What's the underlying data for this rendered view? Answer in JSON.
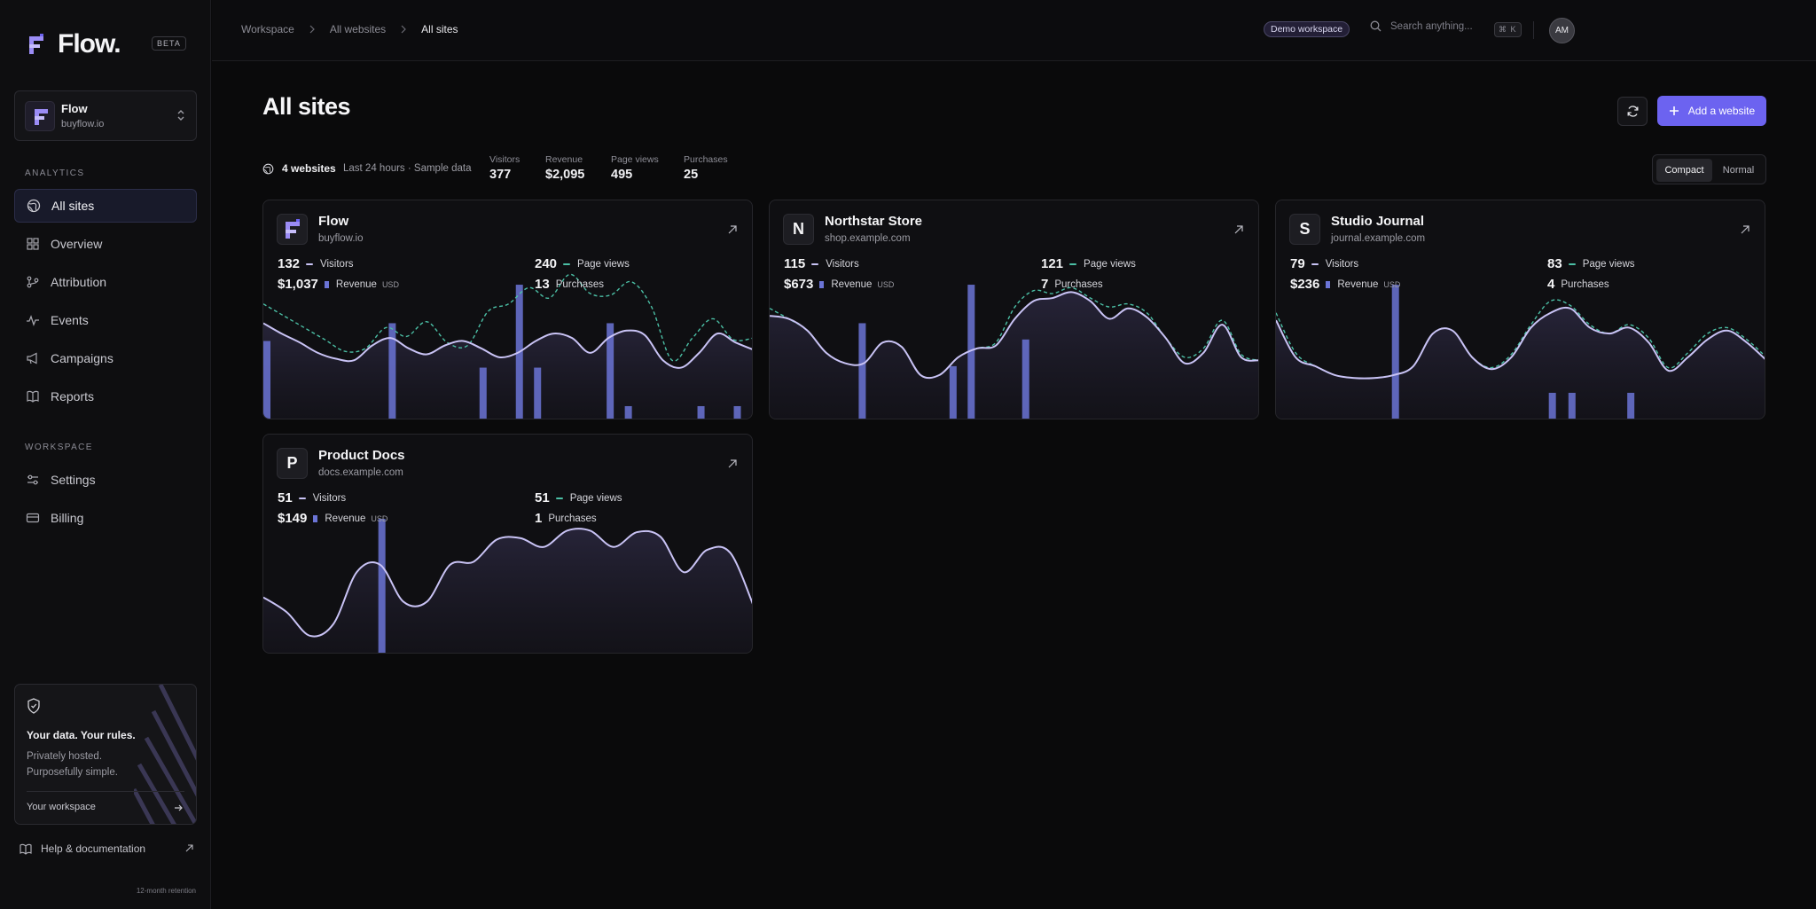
{
  "brand": {
    "name": "Flow.",
    "badge": "BETA"
  },
  "switcher": {
    "name": "Flow",
    "domain": "buyflow.io"
  },
  "sidebar": {
    "analytics_label": "ANALYTICS",
    "workspace_label": "WORKSPACE",
    "items": [
      {
        "label": "All sites",
        "icon": "globe-icon"
      },
      {
        "label": "Overview",
        "icon": "grid-icon"
      },
      {
        "label": "Attribution",
        "icon": "branch-icon"
      },
      {
        "label": "Events",
        "icon": "activity-icon"
      },
      {
        "label": "Campaigns",
        "icon": "megaphone-icon"
      },
      {
        "label": "Reports",
        "icon": "book-icon"
      },
      {
        "label": "Settings",
        "icon": "sliders-icon"
      },
      {
        "label": "Billing",
        "icon": "credit-card-icon"
      }
    ]
  },
  "promo": {
    "title": "Your data. Your rules.",
    "line1": "Privately hosted.",
    "line2": "Purposefully simple.",
    "link": "Your workspace"
  },
  "help": {
    "label": "Help & documentation"
  },
  "retention": "12-month retention",
  "topbar": {
    "breadcrumbs": [
      "Workspace",
      "All websites",
      "All sites"
    ],
    "workspace_badge": "Demo workspace",
    "search_placeholder": "Search anything...",
    "shortcut": "⌘ K",
    "avatar": "AM"
  },
  "page": {
    "title": "All sites",
    "add_button": "Add a website"
  },
  "summary": {
    "count": "4 websites",
    "range": "Last 24 hours · Sample data",
    "stats": [
      {
        "label": "Visitors",
        "value": "377"
      },
      {
        "label": "Revenue",
        "value": "$2,095"
      },
      {
        "label": "Page views",
        "value": "495"
      },
      {
        "label": "Purchases",
        "value": "25"
      }
    ]
  },
  "view_toggle": {
    "options": [
      "Compact",
      "Normal"
    ],
    "selected": "Compact"
  },
  "colors": {
    "accent": "#6c63f0",
    "visitors_line": "#c9c3f5",
    "pageviews_line": "#4bbfa5",
    "revenue_bar": "#6b74d6"
  },
  "labels": {
    "visitors": "Visitors",
    "revenue": "Revenue",
    "currency": "USD",
    "page_views": "Page views",
    "purchases": "Purchases"
  },
  "sites": [
    {
      "initial": "F",
      "name": "Flow",
      "domain": "buyflow.io",
      "visitors": "132",
      "revenue": "$1,037",
      "page_views": "240",
      "purchases": "13"
    },
    {
      "initial": "N",
      "name": "Northstar Store",
      "domain": "shop.example.com",
      "visitors": "115",
      "revenue": "$673",
      "page_views": "121",
      "purchases": "7"
    },
    {
      "initial": "S",
      "name": "Studio Journal",
      "domain": "journal.example.com",
      "visitors": "79",
      "revenue": "$236",
      "page_views": "83",
      "purchases": "4"
    },
    {
      "initial": "P",
      "name": "Product Docs",
      "domain": "docs.example.com",
      "visitors": "51",
      "revenue": "$149",
      "page_views": "51",
      "purchases": "1"
    }
  ],
  "chart_data": [
    {
      "type": "line",
      "site": "Flow",
      "series": [
        {
          "name": "Visitors",
          "values": [
            0.65,
            0.58,
            0.52,
            0.45,
            0.41,
            0.4,
            0.5,
            0.55,
            0.48,
            0.44,
            0.5,
            0.53,
            0.48,
            0.42,
            0.45,
            0.53,
            0.58,
            0.55,
            0.45,
            0.55,
            0.6,
            0.57,
            0.4,
            0.35,
            0.45,
            0.58,
            0.52,
            0.47
          ]
        },
        {
          "name": "Page views",
          "values": [
            0.78,
            0.7,
            0.62,
            0.54,
            0.46,
            0.48,
            0.62,
            0.56,
            0.66,
            0.52,
            0.5,
            0.73,
            0.78,
            0.89,
            0.82,
            0.98,
            0.85,
            0.84,
            0.93,
            0.76,
            0.4,
            0.55,
            0.68,
            0.54,
            0.55
          ]
        },
        {
          "name": "Revenue",
          "values": [
            0.53,
            0,
            0,
            0,
            0,
            0,
            0,
            0.65,
            0,
            0,
            0,
            0,
            0.35,
            0,
            0.91,
            0.35,
            0,
            0,
            0,
            0.65,
            0.09,
            0,
            0,
            0,
            0.09,
            0,
            0.09,
            0
          ]
        }
      ]
    },
    {
      "type": "line",
      "site": "Northstar Store",
      "series": [
        {
          "name": "Visitors",
          "values": [
            0.7,
            0.68,
            0.6,
            0.45,
            0.38,
            0.38,
            0.52,
            0.49,
            0.3,
            0.3,
            0.42,
            0.48,
            0.5,
            0.68,
            0.8,
            0.82,
            0.86,
            0.8,
            0.68,
            0.75,
            0.69,
            0.55,
            0.38,
            0.45,
            0.64,
            0.42,
            0.4
          ]
        },
        {
          "name": "Page views",
          "values": [
            0.75,
            0.68,
            0.6,
            0.45,
            0.38,
            0.38,
            0.52,
            0.49,
            0.3,
            0.3,
            0.42,
            0.48,
            0.52,
            0.76,
            0.87,
            0.85,
            0.89,
            0.82,
            0.76,
            0.78,
            0.72,
            0.55,
            0.42,
            0.48,
            0.67,
            0.44,
            0.4
          ]
        },
        {
          "name": "Revenue",
          "values": [
            0,
            0,
            0,
            0,
            0,
            0.65,
            0,
            0,
            0,
            0,
            0.36,
            0.91,
            0,
            0,
            0.54,
            0,
            0,
            0,
            0,
            0,
            0,
            0,
            0,
            0,
            0,
            0,
            0,
            0
          ]
        }
      ]
    },
    {
      "type": "line",
      "site": "Studio Journal",
      "series": [
        {
          "name": "Visitors",
          "values": [
            0.67,
            0.42,
            0.36,
            0.3,
            0.28,
            0.28,
            0.3,
            0.36,
            0.58,
            0.6,
            0.42,
            0.34,
            0.42,
            0.62,
            0.72,
            0.75,
            0.62,
            0.58,
            0.62,
            0.52,
            0.33,
            0.42,
            0.54,
            0.6,
            0.52,
            0.4
          ]
        },
        {
          "name": "Page views",
          "values": [
            0.72,
            0.45,
            0.36,
            0.3,
            0.28,
            0.28,
            0.3,
            0.36,
            0.58,
            0.6,
            0.42,
            0.35,
            0.44,
            0.64,
            0.8,
            0.77,
            0.64,
            0.58,
            0.64,
            0.55,
            0.35,
            0.45,
            0.58,
            0.62,
            0.54,
            0.42
          ]
        },
        {
          "name": "Revenue",
          "values": [
            0,
            0,
            0,
            0,
            0,
            0,
            0.91,
            0,
            0,
            0,
            0,
            0,
            0,
            0,
            0.18,
            0.18,
            0,
            0,
            0.18,
            0,
            0,
            0,
            0,
            0,
            0,
            0
          ]
        }
      ]
    },
    {
      "type": "line",
      "site": "Product Docs",
      "series": [
        {
          "name": "Visitors",
          "values": [
            0.38,
            0.28,
            0.12,
            0.2,
            0.55,
            0.6,
            0.35,
            0.35,
            0.6,
            0.62,
            0.77,
            0.78,
            0.72,
            0.83,
            0.83,
            0.72,
            0.82,
            0.79,
            0.55,
            0.7,
            0.68,
            0.32
          ]
        },
        {
          "name": "Revenue",
          "values": [
            0,
            0,
            0,
            0,
            0,
            0.91,
            0,
            0,
            0,
            0,
            0,
            0,
            0,
            0,
            0,
            0,
            0,
            0,
            0,
            0,
            0,
            0
          ]
        }
      ]
    }
  ]
}
